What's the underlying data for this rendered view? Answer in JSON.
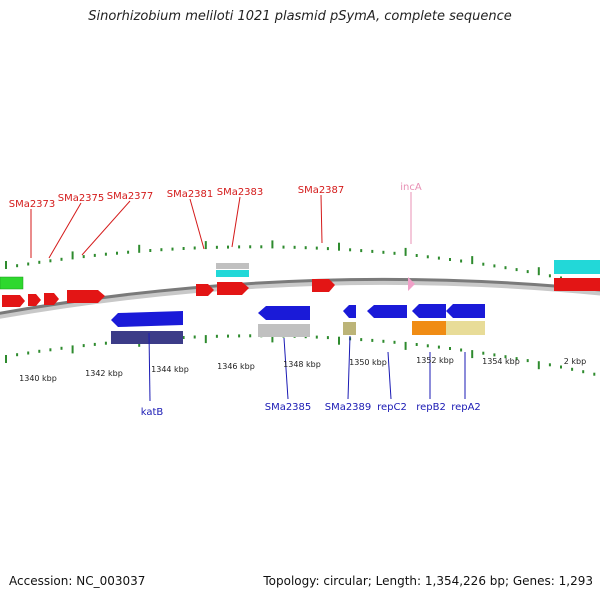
{
  "title": "Sinorhizobium meliloti 1021 plasmid pSymA, complete sequence",
  "footer": {
    "accession": "Accession: NC_003037",
    "summary": "Topology: circular; Length: 1,354,226 bp; Genes: 1,293"
  },
  "colors": {
    "backbone": "#808080",
    "tick": "#2e8b2e",
    "red_gene": "#e31515",
    "blue_gene": "#1a1ad8",
    "navy_gene": "#3c3c88",
    "cyan_gene": "#22d8d8",
    "green_gene": "#2ed82e",
    "grey_gene": "#c0c0c0",
    "olive_gene": "#bcb478",
    "orange_gene": "#f08c14",
    "tan_gene": "#e8dc98",
    "pink_gene": "#f0a0c8",
    "top_label": "#d41a1a",
    "bottom_label": "#1a1ab4",
    "incA_label": "#e890b4"
  },
  "scale_labels": [
    "1340 kbp",
    "1342 kbp",
    "1344 kbp",
    "1346 kbp",
    "1348 kbp",
    "1350 kbp",
    "1352 kbp",
    "1354 kbp",
    "2 kbp"
  ],
  "top_labels": [
    "SMa2373",
    "SMa2375",
    "SMa2377",
    "SMa2381",
    "SMa2383",
    "SMa2387",
    "incA"
  ],
  "bottom_labels": [
    "katB",
    "SMa2385",
    "SMa2389",
    "repC2",
    "repB2",
    "repA2"
  ]
}
